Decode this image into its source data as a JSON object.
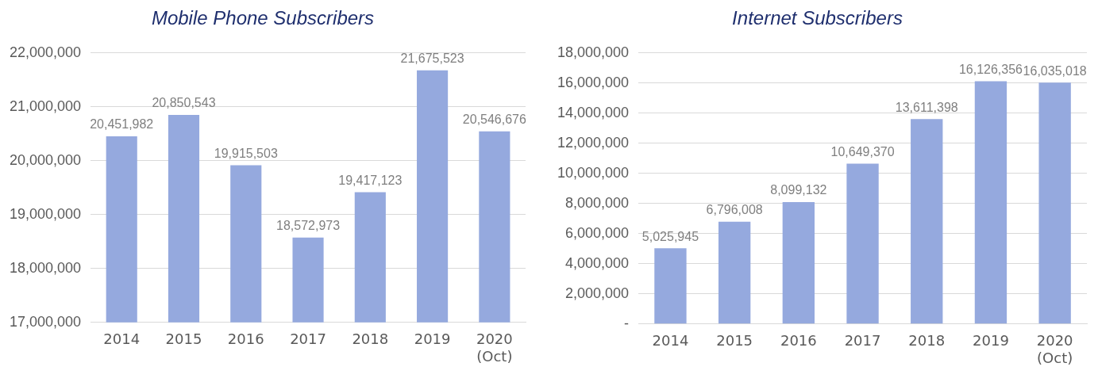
{
  "chart_data": [
    {
      "type": "bar",
      "title": "Mobile Phone Subscribers",
      "categories": [
        "2014",
        "2015",
        "2016",
        "2017",
        "2018",
        "2019",
        "2020 (Oct)"
      ],
      "values": [
        20451982,
        20850543,
        19915503,
        18572973,
        19417123,
        21675523,
        20546676
      ],
      "value_labels": [
        "20,451,982",
        "20,850,543",
        "19,915,503",
        "18,572,973",
        "19,417,123",
        "21,675,523",
        "20,546,676"
      ],
      "color": "#95a9de",
      "ylim": [
        17000000,
        22000000
      ],
      "yticks": [
        {
          "value": 17000000,
          "label": "17,000,000"
        },
        {
          "value": 18000000,
          "label": "18,000,000"
        },
        {
          "value": 19000000,
          "label": "19,000,000"
        },
        {
          "value": 20000000,
          "label": "20,000,000"
        },
        {
          "value": 21000000,
          "label": "21,000,000"
        },
        {
          "value": 22000000,
          "label": "22,000,000"
        }
      ],
      "grid": "y"
    },
    {
      "type": "bar",
      "title": "Internet Subscribers",
      "categories": [
        "2014",
        "2015",
        "2016",
        "2017",
        "2018",
        "2019",
        "2020 (Oct)"
      ],
      "values": [
        5025945,
        6796008,
        8099132,
        10649370,
        13611398,
        16126356,
        16035018
      ],
      "value_labels": [
        "5,025,945",
        "6,796,008",
        "8,099,132",
        "10,649,370",
        "13,611,398",
        "16,126,356",
        "16,035,018"
      ],
      "color": "#95a9de",
      "ylim": [
        0,
        18000000
      ],
      "yticks": [
        {
          "value": 0,
          "label": "-"
        },
        {
          "value": 2000000,
          "label": "2,000,000"
        },
        {
          "value": 4000000,
          "label": "4,000,000"
        },
        {
          "value": 6000000,
          "label": "6,000,000"
        },
        {
          "value": 8000000,
          "label": "8,000,000"
        },
        {
          "value": 10000000,
          "label": "10,000,000"
        },
        {
          "value": 12000000,
          "label": "12,000,000"
        },
        {
          "value": 14000000,
          "label": "14,000,000"
        },
        {
          "value": 16000000,
          "label": "16,000,000"
        },
        {
          "value": 18000000,
          "label": "18,000,000"
        }
      ],
      "grid": "y"
    }
  ]
}
